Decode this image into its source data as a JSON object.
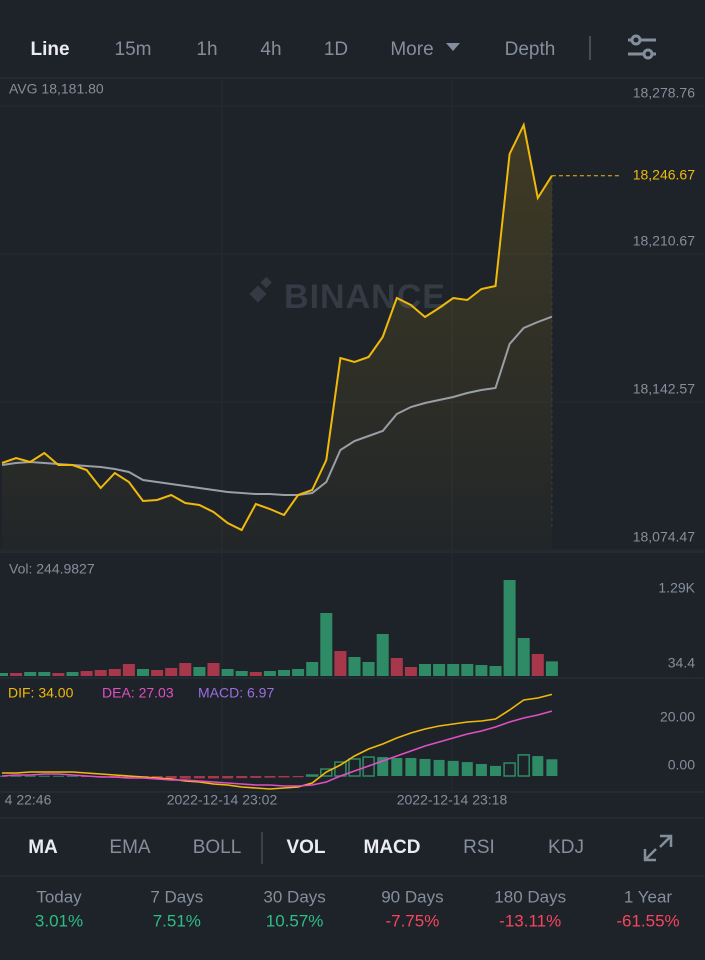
{
  "tabs": {
    "items": [
      "Line",
      "15m",
      "1h",
      "4h",
      "1D",
      "More",
      "Depth"
    ],
    "active": 0
  },
  "price_chart": {
    "type": "line",
    "avg_label": "AVG 18,181.80",
    "watermark": "BINANCE",
    "ylim": [
      18074.47,
      18291.64
    ],
    "yticks": [
      {
        "value": 18278.76,
        "label": "18,278.76"
      },
      {
        "value": 18210.67,
        "label": "18,210.67"
      },
      {
        "value": 18142.57,
        "label": "18,142.57"
      },
      {
        "value": 18074.47,
        "label": "18,074.47"
      }
    ],
    "current": {
      "value": 18246.67,
      "label": "18,246.67"
    },
    "series": [
      {
        "color": "#f0b90b",
        "values": [
          18114.5,
          18116.8,
          18114.96,
          18119.1,
          18113.58,
          18113.58,
          18111.28,
          18103.0,
          18109.9,
          18105.76,
          18097.02,
          18097.48,
          18099.78,
          18096.1,
          18095.18,
          18091.96,
          18086.89,
          18083.67,
          18095.64,
          18093.34,
          18090.57,
          18099.78,
          18102.08,
          18115.88,
          18162.82,
          18160.97,
          18163.28,
          18172.48,
          18190.42,
          18187.2,
          18181.68,
          18185.82,
          18190.42,
          18189.5,
          18194.56,
          18195.94,
          18256.68,
          18270.03,
          18236.44,
          18246.67
        ]
      },
      {
        "color": "#9a9ea6",
        "values": [
          18113.58,
          18114.5,
          18114.96,
          18114.5,
          18114.04,
          18113.58,
          18113.12,
          18112.66,
          18111.74,
          18110.36,
          18106.68,
          18105.76,
          18104.84,
          18103.92,
          18103.0,
          18102.08,
          18101.16,
          18100.7,
          18100.24,
          18100.24,
          18099.78,
          18099.78,
          18100.7,
          18105.76,
          18120.48,
          18124.62,
          18126.92,
          18129.23,
          18137.05,
          18140.27,
          18142.11,
          18143.49,
          18144.87,
          18146.71,
          18148.09,
          18149.01,
          18169.26,
          18176.62,
          18179.38,
          18181.8
        ]
      }
    ]
  },
  "vol_chart": {
    "type": "bar",
    "label": "Vol: 244.9827",
    "ylim": [
      0,
      2010
    ],
    "yticks": [
      {
        "value": 1290,
        "label": "1.29K"
      },
      34.4
    ],
    "values": [
      50.3,
      50.3,
      67,
      67,
      50.3,
      67,
      83.8,
      100.5,
      117.3,
      201,
      117.3,
      100.5,
      134,
      217.8,
      150.8,
      217.8,
      117.3,
      83.8,
      67,
      83.8,
      100.5,
      117.3,
      234.5,
      1055.3,
      418.8,
      318.3,
      234.5,
      703.5,
      301.5,
      150.8,
      201,
      201,
      201,
      201,
      184.3,
      167.5,
      1608,
      636.5,
      368.5,
      244.9827
    ],
    "colors": [
      "#2e8b66",
      "#a7384b",
      "#2e8b66",
      "#2e8b66",
      "#a7384b",
      "#2e8b66",
      "#a7384b",
      "#a7384b",
      "#a7384b",
      "#a7384b",
      "#2e8b66",
      "#a7384b",
      "#a7384b",
      "#a7384b",
      "#2e8b66",
      "#a7384b",
      "#2e8b66",
      "#2e8b66",
      "#a7384b",
      "#2e8b66",
      "#2e8b66",
      "#2e8b66",
      "#2e8b66",
      "#2e8b66",
      "#a7384b",
      "#2e8b66",
      "#2e8b66",
      "#2e8b66",
      "#a7384b",
      "#a7384b",
      "#2e8b66",
      "#2e8b66",
      "#2e8b66",
      "#2e8b66",
      "#2e8b66",
      "#2e8b66",
      "#2e8b66",
      "#2e8b66",
      "#a7384b",
      "#2e8b66"
    ]
  },
  "macd_chart": {
    "type": "macd",
    "ylim": [
      -6.67,
      40
    ],
    "yticks": [
      {
        "value": 20,
        "label": "20.00"
      },
      {
        "value": 0,
        "label": "0.00"
      }
    ],
    "up_color": "#2e8b66",
    "down_color": "#a7384b",
    "series": [
      {
        "label": "DIF: 34.00",
        "color": "#f0b90b",
        "values": [
          1.25,
          1.25,
          1.67,
          1.67,
          1.67,
          1.67,
          1.25,
          0.83,
          0.42,
          0,
          -0.42,
          -0.83,
          -1.25,
          -2.08,
          -2.5,
          -3.33,
          -3.75,
          -4.58,
          -5,
          -5.42,
          -5,
          -4.58,
          -2.92,
          1.67,
          4.58,
          8.33,
          11.25,
          13.33,
          15.83,
          17.92,
          19.58,
          20.83,
          21.67,
          22.5,
          22.92,
          23.75,
          27.5,
          31.67,
          32.5,
          34.0
        ]
      },
      {
        "label": "DEA: 27.03",
        "color": "#e04fc4",
        "values": [
          0,
          0.42,
          0.42,
          0.83,
          0.83,
          0.42,
          0,
          -0.42,
          -0.42,
          -0.83,
          -0.83,
          -1.25,
          -1.67,
          -1.67,
          -2.08,
          -2.5,
          -2.92,
          -3.33,
          -3.75,
          -3.75,
          -4.17,
          -4.17,
          -3.75,
          -2.5,
          0,
          2.08,
          4.17,
          6.25,
          8.33,
          10.42,
          12.5,
          14.17,
          15.83,
          17.5,
          18.75,
          20.42,
          22.5,
          24.17,
          25.42,
          27.03
        ]
      },
      {
        "label": "MACD: 6.97",
        "color": "#9b6fe0",
        "values": [
          0.1,
          0.1,
          0.1,
          0.1,
          0.1,
          0.1,
          -0.4,
          -0.6,
          -0.8,
          -0.9,
          -1.0,
          -1.0,
          -1.0,
          -1.1,
          -1.0,
          -1.0,
          -1.0,
          -0.9,
          -0.8,
          -0.7,
          -0.6,
          -0.5,
          0.4,
          2.9,
          5.8,
          7.1,
          7.9,
          7.9,
          7.5,
          7.5,
          7.1,
          6.7,
          6.3,
          5.8,
          5.0,
          4.2,
          5.4,
          8.8,
          8.3,
          6.97
        ]
      }
    ]
  },
  "time_axis": [
    "4 22:46",
    "2022-12-14 23:02",
    "2022-12-14 23:18"
  ],
  "indicators": {
    "items": [
      "MA",
      "EMA",
      "BOLL",
      "VOL",
      "MACD",
      "RSI",
      "KDJ"
    ],
    "active": [
      0,
      3,
      4
    ]
  },
  "stats": [
    {
      "label": "Today",
      "value": "3.01%",
      "color": "#2ebd85"
    },
    {
      "label": "7 Days",
      "value": "7.51%",
      "color": "#2ebd85"
    },
    {
      "label": "30 Days",
      "value": "10.57%",
      "color": "#2ebd85"
    },
    {
      "label": "90 Days",
      "value": "-7.75%",
      "color": "#f6465d"
    },
    {
      "label": "180 Days",
      "value": "-13.11%",
      "color": "#f6465d"
    },
    {
      "label": "1 Year",
      "value": "-61.55%",
      "color": "#f6465d"
    }
  ]
}
